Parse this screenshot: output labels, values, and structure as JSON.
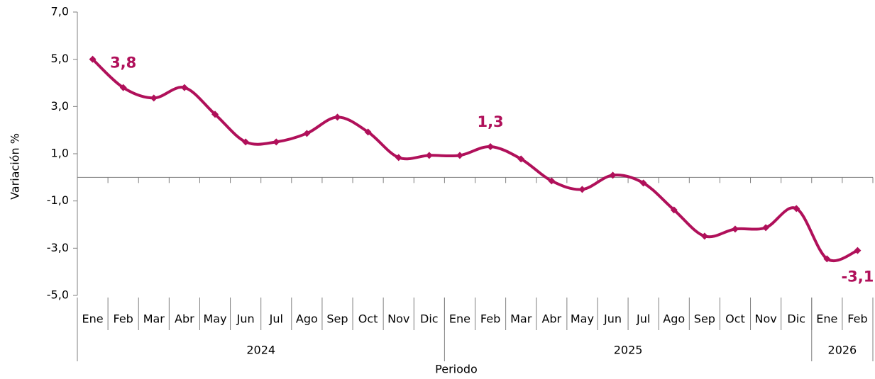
{
  "chart_data": {
    "type": "line",
    "y_label": "Variación %",
    "x_label": "Periodo",
    "groups": [
      {
        "name": "2024",
        "categories": [
          "Ene",
          "Feb",
          "Mar",
          "Abr",
          "May",
          "Jun",
          "Jul",
          "Ago",
          "Sep",
          "Oct",
          "Nov",
          "Dic"
        ]
      },
      {
        "name": "2025",
        "categories": [
          "Ene",
          "Feb",
          "Mar",
          "Abr",
          "May",
          "Jun",
          "Jul",
          "Ago",
          "Sep",
          "Oct",
          "Nov",
          "Dic"
        ]
      },
      {
        "name": "2026",
        "categories": [
          "Ene",
          "Feb"
        ]
      }
    ],
    "color": "#b0105a",
    "values": [
      5.0,
      3.8,
      3.36,
      3.8,
      2.67,
      1.5,
      1.5,
      1.86,
      2.55,
      1.92,
      0.84,
      0.93,
      0.93,
      1.3,
      0.78,
      -0.15,
      -0.51,
      0.09,
      -0.24,
      -1.38,
      -2.49,
      -2.19,
      -2.13,
      -1.32,
      -3.45,
      -3.1
    ],
    "value_labels": [
      null,
      "3,8",
      null,
      null,
      null,
      null,
      null,
      null,
      null,
      null,
      null,
      null,
      null,
      "1,3",
      null,
      null,
      null,
      null,
      null,
      null,
      null,
      null,
      null,
      null,
      null,
      "-3,1"
    ],
    "ylim": [
      -5,
      7
    ],
    "yticks": [
      {
        "value": -5,
        "label": "-5,0"
      },
      {
        "value": -3,
        "label": "-3,0"
      },
      {
        "value": -1,
        "label": "-1,0"
      },
      {
        "value": 1,
        "label": "1,0"
      },
      {
        "value": 3,
        "label": "3,0"
      },
      {
        "value": 5,
        "label": "5,0"
      },
      {
        "value": 7,
        "label": "7,0"
      }
    ],
    "grid": false
  }
}
